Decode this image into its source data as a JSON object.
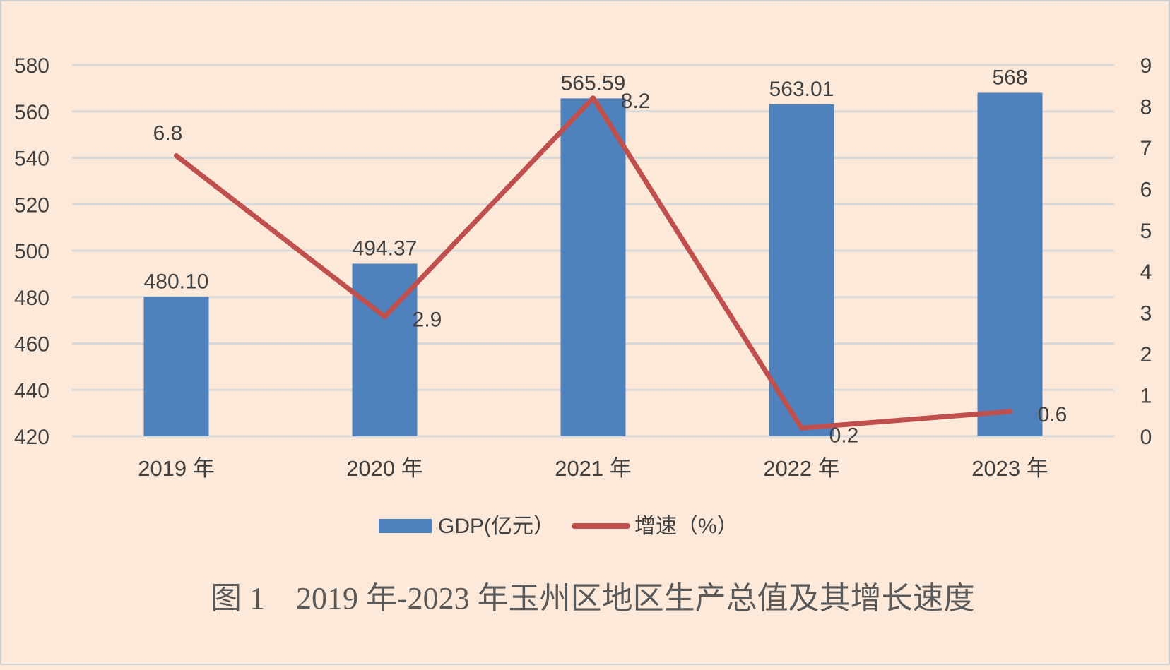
{
  "chart_data": {
    "type": "bar+line",
    "title": "图 1　2019 年-2023 年玉州区地区生产总值及其增长速度",
    "categories": [
      "2019 年",
      "2020 年",
      "2021 年",
      "2022 年",
      "2023 年"
    ],
    "series": [
      {
        "name": "GDP(亿元）",
        "type": "bar",
        "axis": "left",
        "values": [
          480.1,
          494.37,
          565.59,
          563.01,
          568
        ],
        "labels": [
          "480.10",
          "494.37",
          "565.59",
          "563.01",
          "568"
        ],
        "color": "#4f81bd"
      },
      {
        "name": "增速（%）",
        "type": "line",
        "axis": "right",
        "values": [
          6.8,
          2.9,
          8.2,
          0.2,
          0.6
        ],
        "labels": [
          "6.8",
          "2.9",
          "8.2",
          "0.2",
          "0.6"
        ],
        "color": "#c0504d"
      }
    ],
    "y_left": {
      "min": 420,
      "max": 580,
      "step": 20,
      "ticks": [
        "420",
        "440",
        "460",
        "480",
        "500",
        "520",
        "540",
        "560",
        "580"
      ]
    },
    "y_right": {
      "min": 0,
      "max": 9,
      "step": 1,
      "ticks": [
        "0",
        "1",
        "2",
        "3",
        "4",
        "5",
        "6",
        "7",
        "8",
        "9"
      ]
    },
    "grid": true,
    "legend": "bottom",
    "colors": {
      "background": "#fde9d9",
      "grid": "#d9d9d9",
      "text": "#404040"
    }
  }
}
